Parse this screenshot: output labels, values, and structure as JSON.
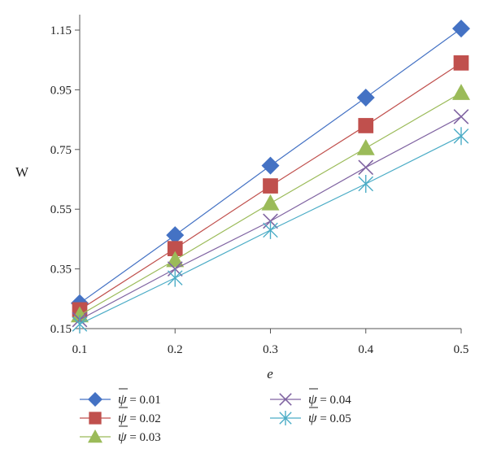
{
  "chart_data": {
    "type": "line",
    "title": "",
    "xlabel": "e",
    "ylabel": "W",
    "x": [
      0.1,
      0.2,
      0.3,
      0.4,
      0.5
    ],
    "xticks": [
      "0.1",
      "0.2",
      "0.3",
      "0.4",
      "0.5"
    ],
    "yticks": [
      "0.15",
      "0.35",
      "0.55",
      "0.75",
      "0.95",
      "1.15"
    ],
    "xlim": [
      0.1,
      0.5
    ],
    "ylim": [
      0.15,
      1.2
    ],
    "grid": false,
    "legend_position": "bottom",
    "series": [
      {
        "name": "ψ̄ = 0.01",
        "symbol": "ψ",
        "value_text": " = 0.01",
        "color": "#4472C4",
        "marker": "diamond",
        "values": [
          0.235,
          0.463,
          0.696,
          0.924,
          1.155
        ]
      },
      {
        "name": "ψ̄ = 0.02",
        "symbol": "ψ",
        "value_text": " = 0.02",
        "color": "#C0504D",
        "marker": "square",
        "values": [
          0.213,
          0.418,
          0.628,
          0.83,
          1.04
        ]
      },
      {
        "name": "ψ̄ = 0.03",
        "symbol": "ψ",
        "value_text": " = 0.03",
        "color": "#9BBB59",
        "marker": "triangle",
        "values": [
          0.195,
          0.38,
          0.57,
          0.755,
          0.94
        ]
      },
      {
        "name": "ψ̄ = 0.04",
        "symbol": "ψ",
        "value_text": " = 0.04",
        "color": "#8064A2",
        "marker": "x",
        "values": [
          0.18,
          0.35,
          0.51,
          0.69,
          0.86
        ]
      },
      {
        "name": "ψ̄ = 0.05",
        "symbol": "ψ",
        "value_text": " = 0.05",
        "color": "#4BACC6",
        "marker": "star",
        "values": [
          0.165,
          0.32,
          0.48,
          0.635,
          0.795
        ]
      }
    ]
  }
}
